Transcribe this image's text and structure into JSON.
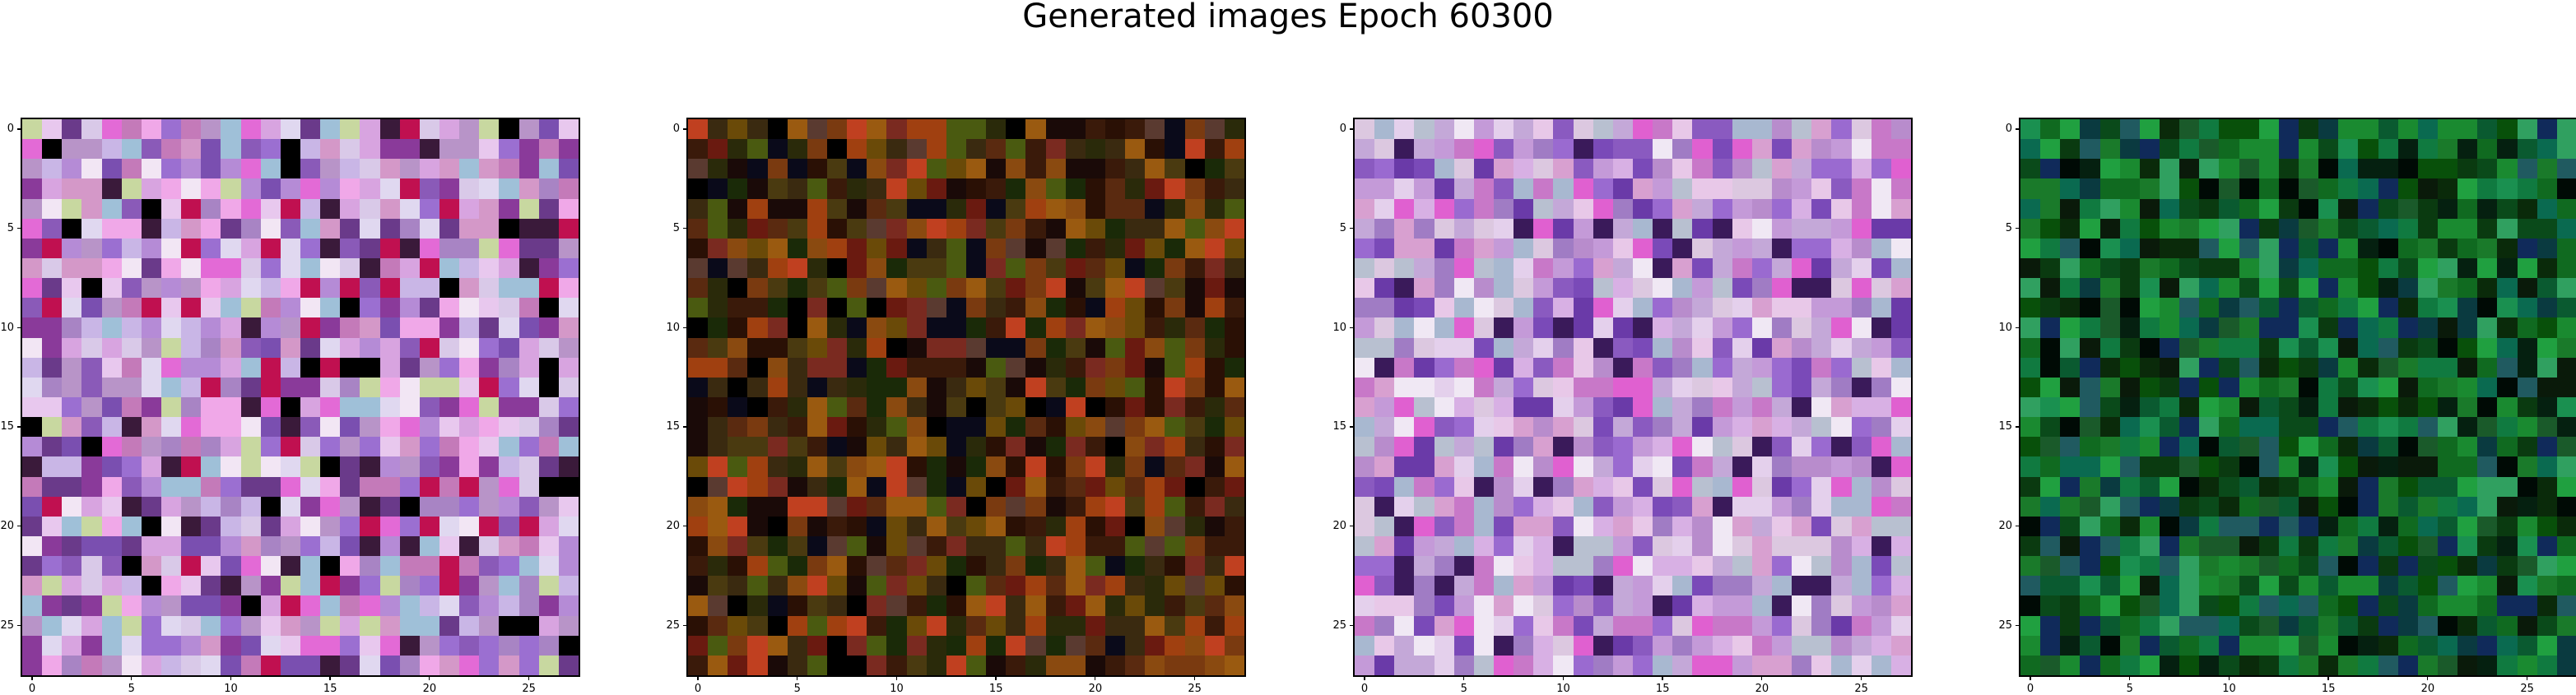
{
  "figure": {
    "title": "Generated images Epoch 60300"
  },
  "axis_ticks": {
    "x": [
      "0",
      "5",
      "10",
      "15",
      "20",
      "25"
    ],
    "y": [
      "0",
      "5",
      "10",
      "15",
      "20",
      "25"
    ],
    "tick_values": [
      0,
      5,
      10,
      15,
      20,
      25
    ]
  },
  "images": [
    {
      "grid_size": 28,
      "dominant_palette": "pink-purple-lavender"
    },
    {
      "grid_size": 28,
      "dominant_palette": "dark brown-red-olive"
    },
    {
      "grid_size": 28,
      "dominant_palette": "pink-purple-lavender"
    },
    {
      "grid_size": 28,
      "dominant_palette": "green-teal-dark"
    }
  ]
}
